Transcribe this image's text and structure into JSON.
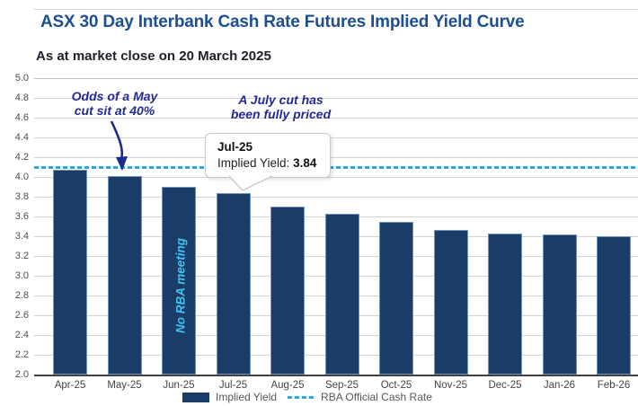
{
  "chart_data": {
    "type": "bar",
    "title": "ASX 30 Day Interbank Cash Rate Futures Implied Yield Curve",
    "subtitle": "As at market close on 20 March 2025",
    "categories": [
      "Apr-25",
      "May-25",
      "Jun-25",
      "Jul-25",
      "Aug-25",
      "Sep-25",
      "Oct-25",
      "Nov-25",
      "Dec-25",
      "Jan-26",
      "Feb-26"
    ],
    "series": [
      {
        "name": "Implied Yield",
        "color": "#1b3c66",
        "values": [
          4.07,
          4.01,
          3.9,
          3.84,
          3.7,
          3.63,
          3.55,
          3.46,
          3.43,
          3.42,
          3.4
        ]
      }
    ],
    "reference_line": {
      "name": "RBA Official Cash Rate",
      "value": 4.1,
      "color": "#2fa6de",
      "style": "dashed"
    },
    "ylim": [
      2.0,
      5.0
    ],
    "yticks": [
      5.0,
      4.8,
      4.6,
      4.4,
      4.2,
      4.0,
      3.8,
      3.6,
      3.4,
      3.2,
      3.0,
      2.8,
      2.6,
      2.4,
      2.2,
      2.0
    ],
    "xlabel": "",
    "ylabel": "",
    "grid": true,
    "legend_position": "bottom",
    "annotations": {
      "may": {
        "line1": "Odds of a May",
        "line2": "cut sit at 40%"
      },
      "july": {
        "line1": "A July cut has",
        "line2": "been fully priced"
      },
      "no_meeting": "No RBA meeting"
    },
    "tooltip": {
      "title": "Jul-25",
      "label": "Implied Yield:",
      "value": "3.84"
    }
  },
  "colors": {
    "title_blue": "#1d4f91",
    "annotation_navy": "#232a94",
    "bar_navy": "#1b3c66",
    "bar_border": "#7094ba",
    "reference_cyan": "#2fa6de",
    "no_meeting_cyan": "#41c2f1",
    "gridline_gray": "#d4d4d4"
  }
}
